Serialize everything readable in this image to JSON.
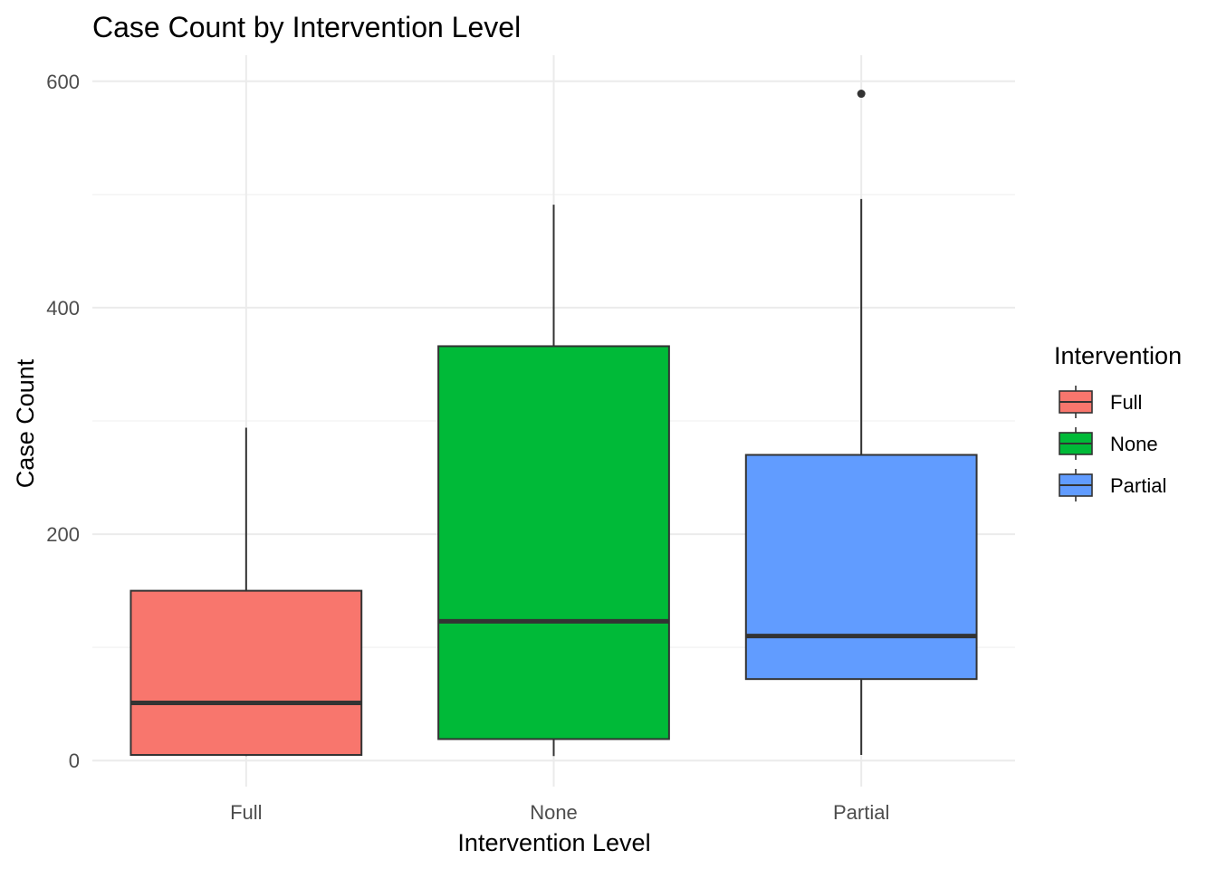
{
  "chart_data": {
    "type": "boxplot",
    "title": "Case Count by Intervention Level",
    "xlabel": "Intervention Level",
    "ylabel": "Case Count",
    "ylim": [
      -23,
      623
    ],
    "yticks": [
      0,
      200,
      400,
      600
    ],
    "y_minor_ticks": [
      100,
      300,
      500
    ],
    "grid": true,
    "legend": {
      "title": "Intervention",
      "position": "right"
    },
    "categories": [
      "Full",
      "None",
      "Partial"
    ],
    "series": [
      {
        "name": "Full",
        "color": "#F8766D",
        "min": 4,
        "q1": 5,
        "median": 51,
        "q3": 150,
        "max": 294,
        "outliers": []
      },
      {
        "name": "None",
        "color": "#00BA38",
        "min": 4,
        "q1": 19,
        "median": 123,
        "q3": 366,
        "max": 491,
        "outliers": []
      },
      {
        "name": "Partial",
        "color": "#619CFF",
        "min": 5,
        "q1": 72,
        "median": 110,
        "q3": 270,
        "max": 496,
        "outliers": [
          589
        ]
      }
    ]
  }
}
